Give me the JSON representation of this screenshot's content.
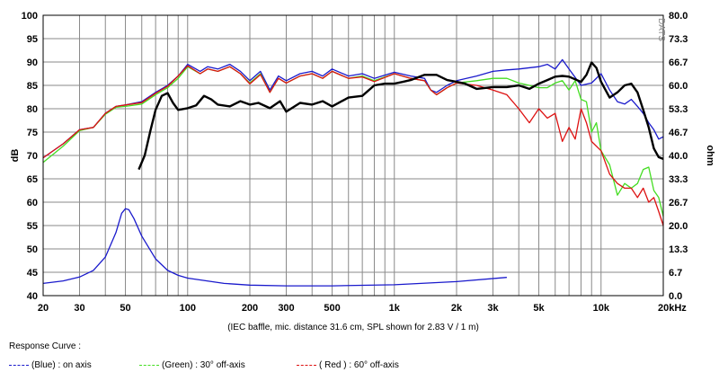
{
  "chart_data": {
    "type": "line",
    "xscale": "log",
    "xlim": [
      20,
      20000
    ],
    "ylim": [
      40,
      100
    ],
    "y2lim": [
      0,
      80
    ],
    "ylabel": "dB",
    "y2label": "ohm",
    "watermark": "DATS",
    "note": "(IEC baffle, mic. distance 31.6 cm, SPL shown for 2.83 V / 1 m)",
    "x_tick_labels": [
      {
        "v": 20,
        "t": "20"
      },
      {
        "v": 30,
        "t": "30"
      },
      {
        "v": 50,
        "t": "50"
      },
      {
        "v": 100,
        "t": "100"
      },
      {
        "v": 200,
        "t": "200"
      },
      {
        "v": 300,
        "t": "300"
      },
      {
        "v": 500,
        "t": "500"
      },
      {
        "v": 1000,
        "t": "1k"
      },
      {
        "v": 2000,
        "t": "2k"
      },
      {
        "v": 3000,
        "t": "3k"
      },
      {
        "v": 5000,
        "t": "5k"
      },
      {
        "v": 10000,
        "t": "10k"
      },
      {
        "v": 20000,
        "t": "20kHz"
      }
    ],
    "y_tick_labels": [
      "100",
      "95",
      "90",
      "85",
      "80",
      "75",
      "70",
      "65",
      "60",
      "55",
      "50",
      "45",
      "40"
    ],
    "y2_tick_labels": [
      "80.0",
      "73.3",
      "66.7",
      "60.0",
      "53.3",
      "46.7",
      "40.0",
      "33.3",
      "26.7",
      "20.0",
      "13.3",
      "6.7",
      "0.0"
    ],
    "series": [
      {
        "name": "(Blue)  : on axis",
        "color": "#1a1acc",
        "axis": "left",
        "points": [
          [
            20,
            69.5
          ],
          [
            25,
            72.5
          ],
          [
            30,
            75.5
          ],
          [
            35,
            76
          ],
          [
            40,
            79
          ],
          [
            45,
            80.5
          ],
          [
            50,
            80.8
          ],
          [
            60,
            81.5
          ],
          [
            70,
            83.5
          ],
          [
            80,
            85
          ],
          [
            90,
            87
          ],
          [
            100,
            89.5
          ],
          [
            115,
            88
          ],
          [
            125,
            89
          ],
          [
            140,
            88.5
          ],
          [
            160,
            89.5
          ],
          [
            180,
            88
          ],
          [
            200,
            86
          ],
          [
            225,
            88
          ],
          [
            250,
            84
          ],
          [
            275,
            87
          ],
          [
            300,
            86
          ],
          [
            350,
            87.5
          ],
          [
            400,
            88
          ],
          [
            450,
            87
          ],
          [
            500,
            88.5
          ],
          [
            600,
            87
          ],
          [
            700,
            87.5
          ],
          [
            800,
            86.5
          ],
          [
            1000,
            87.8
          ],
          [
            1200,
            87
          ],
          [
            1400,
            86.5
          ],
          [
            1500,
            84
          ],
          [
            1600,
            83.5
          ],
          [
            1800,
            85
          ],
          [
            2000,
            86
          ],
          [
            2500,
            87
          ],
          [
            3000,
            88
          ],
          [
            3500,
            88.3
          ],
          [
            4000,
            88.5
          ],
          [
            5000,
            89
          ],
          [
            5500,
            89.5
          ],
          [
            6000,
            88.5
          ],
          [
            6500,
            90.5
          ],
          [
            7000,
            88.5
          ],
          [
            8000,
            85
          ],
          [
            9000,
            85.5
          ],
          [
            10000,
            87.5
          ],
          [
            11000,
            84
          ],
          [
            12000,
            81.5
          ],
          [
            13000,
            81
          ],
          [
            14000,
            82
          ],
          [
            15000,
            80.5
          ],
          [
            16000,
            79
          ],
          [
            17000,
            77
          ],
          [
            18000,
            75.5
          ],
          [
            19000,
            73.5
          ],
          [
            20000,
            74
          ]
        ]
      },
      {
        "name": "(Green) : 30° off-axis",
        "color": "#44dd22",
        "axis": "left",
        "points": [
          [
            20,
            68.5
          ],
          [
            25,
            72
          ],
          [
            30,
            75.3
          ],
          [
            35,
            76
          ],
          [
            40,
            78.8
          ],
          [
            45,
            80.3
          ],
          [
            50,
            80.5
          ],
          [
            60,
            81
          ],
          [
            70,
            83
          ],
          [
            80,
            84.5
          ],
          [
            90,
            86.5
          ],
          [
            100,
            89
          ],
          [
            115,
            87.5
          ],
          [
            125,
            88.5
          ],
          [
            140,
            88
          ],
          [
            160,
            89
          ],
          [
            180,
            87.5
          ],
          [
            200,
            85.5
          ],
          [
            225,
            87.5
          ],
          [
            250,
            83.5
          ],
          [
            275,
            86.5
          ],
          [
            300,
            85.5
          ],
          [
            350,
            87
          ],
          [
            400,
            87.5
          ],
          [
            450,
            86.5
          ],
          [
            500,
            88
          ],
          [
            600,
            86.5
          ],
          [
            700,
            87
          ],
          [
            800,
            86
          ],
          [
            1000,
            87.5
          ],
          [
            1200,
            86.5
          ],
          [
            1400,
            86
          ],
          [
            1500,
            84
          ],
          [
            1600,
            83
          ],
          [
            1800,
            84.5
          ],
          [
            2000,
            85.5
          ],
          [
            2500,
            86
          ],
          [
            3000,
            86.5
          ],
          [
            3500,
            86.5
          ],
          [
            4000,
            85.5
          ],
          [
            4500,
            85
          ],
          [
            5000,
            84.5
          ],
          [
            5500,
            84.5
          ],
          [
            6000,
            85.5
          ],
          [
            6500,
            86
          ],
          [
            7000,
            84
          ],
          [
            7500,
            86
          ],
          [
            8000,
            82
          ],
          [
            8500,
            81.5
          ],
          [
            9000,
            75
          ],
          [
            9500,
            77
          ],
          [
            10000,
            71
          ],
          [
            11000,
            68
          ],
          [
            12000,
            61.5
          ],
          [
            13000,
            64
          ],
          [
            14000,
            63
          ],
          [
            15000,
            64
          ],
          [
            16000,
            67
          ],
          [
            17000,
            67.5
          ],
          [
            18000,
            62.5
          ],
          [
            19000,
            61
          ],
          [
            20000,
            57
          ]
        ]
      },
      {
        "name": "( Red ) : 60° off-axis",
        "color": "#dd1111",
        "axis": "left",
        "points": [
          [
            20,
            69.5
          ],
          [
            25,
            72.5
          ],
          [
            30,
            75.5
          ],
          [
            35,
            76
          ],
          [
            40,
            79
          ],
          [
            45,
            80.5
          ],
          [
            50,
            80.8
          ],
          [
            60,
            81.3
          ],
          [
            70,
            83.3
          ],
          [
            80,
            84.8
          ],
          [
            90,
            87
          ],
          [
            100,
            89.2
          ],
          [
            115,
            87.5
          ],
          [
            125,
            88.5
          ],
          [
            140,
            88
          ],
          [
            160,
            89
          ],
          [
            180,
            87.5
          ],
          [
            200,
            85.3
          ],
          [
            225,
            87.3
          ],
          [
            250,
            83.5
          ],
          [
            275,
            86.5
          ],
          [
            300,
            85.5
          ],
          [
            350,
            87
          ],
          [
            400,
            87.5
          ],
          [
            450,
            86.5
          ],
          [
            500,
            88
          ],
          [
            600,
            86.5
          ],
          [
            700,
            86.8
          ],
          [
            800,
            85.8
          ],
          [
            1000,
            87.5
          ],
          [
            1200,
            86.5
          ],
          [
            1400,
            86
          ],
          [
            1500,
            84
          ],
          [
            1600,
            83
          ],
          [
            1800,
            84.5
          ],
          [
            2000,
            85.5
          ],
          [
            2500,
            85
          ],
          [
            3000,
            84
          ],
          [
            3500,
            83
          ],
          [
            4000,
            80
          ],
          [
            4500,
            77
          ],
          [
            5000,
            80
          ],
          [
            5500,
            78
          ],
          [
            6000,
            79
          ],
          [
            6500,
            73
          ],
          [
            7000,
            76
          ],
          [
            7500,
            73.5
          ],
          [
            8000,
            80
          ],
          [
            8500,
            77
          ],
          [
            9000,
            73
          ],
          [
            10000,
            71
          ],
          [
            11000,
            66
          ],
          [
            12000,
            64
          ],
          [
            13000,
            63
          ],
          [
            14000,
            63
          ],
          [
            15000,
            61
          ],
          [
            16000,
            63
          ],
          [
            17000,
            60
          ],
          [
            18000,
            61
          ],
          [
            19000,
            58
          ],
          [
            20000,
            55
          ]
        ]
      },
      {
        "name": "Impedance",
        "color": "#000000",
        "axis": "right",
        "points": [
          [
            58,
            36
          ],
          [
            62,
            40
          ],
          [
            66,
            47
          ],
          [
            70,
            53
          ],
          [
            75,
            57
          ],
          [
            80,
            57.8
          ],
          [
            85,
            55
          ],
          [
            90,
            53
          ],
          [
            100,
            53.5
          ],
          [
            110,
            54.3
          ],
          [
            120,
            57
          ],
          [
            130,
            56
          ],
          [
            140,
            54.5
          ],
          [
            160,
            54
          ],
          [
            180,
            55.5
          ],
          [
            200,
            54.5
          ],
          [
            220,
            55
          ],
          [
            250,
            53.5
          ],
          [
            280,
            55.5
          ],
          [
            300,
            52.5
          ],
          [
            350,
            55
          ],
          [
            400,
            54.5
          ],
          [
            450,
            55.5
          ],
          [
            500,
            54
          ],
          [
            600,
            56.5
          ],
          [
            700,
            57
          ],
          [
            800,
            60
          ],
          [
            900,
            60.5
          ],
          [
            1000,
            60.5
          ],
          [
            1100,
            61
          ],
          [
            1200,
            61.5
          ],
          [
            1400,
            63
          ],
          [
            1600,
            63
          ],
          [
            1800,
            61.5
          ],
          [
            2000,
            61
          ],
          [
            2200,
            60.5
          ],
          [
            2500,
            59
          ],
          [
            3000,
            59.5
          ],
          [
            3500,
            59.5
          ],
          [
            4000,
            60
          ],
          [
            4500,
            59
          ],
          [
            5000,
            60.5
          ],
          [
            5500,
            61.5
          ],
          [
            6000,
            62.5
          ],
          [
            6500,
            62.7
          ],
          [
            7000,
            62.5
          ],
          [
            8000,
            61
          ],
          [
            8500,
            63
          ],
          [
            9000,
            66.5
          ],
          [
            9500,
            65
          ],
          [
            10000,
            61
          ],
          [
            11000,
            56.5
          ],
          [
            12000,
            58
          ],
          [
            13000,
            60
          ],
          [
            14000,
            60.5
          ],
          [
            15000,
            58
          ],
          [
            16000,
            53
          ],
          [
            17000,
            48
          ],
          [
            18000,
            42
          ],
          [
            19000,
            39.5
          ],
          [
            20000,
            39
          ]
        ]
      },
      {
        "name": "Impedance (low range)",
        "color": "#1a1acc",
        "axis": "right",
        "points": [
          [
            20,
            3.5
          ],
          [
            25,
            4.2
          ],
          [
            30,
            5.3
          ],
          [
            35,
            7.2
          ],
          [
            40,
            11
          ],
          [
            45,
            18
          ],
          [
            48,
            23.5
          ],
          [
            50,
            24.8
          ],
          [
            52,
            24.5
          ],
          [
            55,
            22
          ],
          [
            60,
            17
          ],
          [
            70,
            10.5
          ],
          [
            80,
            7.2
          ],
          [
            90,
            5.8
          ],
          [
            100,
            5
          ],
          [
            150,
            3.5
          ],
          [
            200,
            3
          ],
          [
            300,
            2.8
          ],
          [
            500,
            2.8
          ],
          [
            1000,
            3.1
          ],
          [
            2000,
            4
          ],
          [
            3500,
            5.2
          ]
        ]
      }
    ]
  },
  "legend": {
    "title": "Response Curve :",
    "items": [
      {
        "label": "(Blue)  : on axis",
        "color": "#1a1acc"
      },
      {
        "label": "(Green) : 30° off-axis",
        "color": "#44dd22"
      },
      {
        "label": "( Red ) : 60° off-axis",
        "color": "#dd1111"
      }
    ]
  }
}
